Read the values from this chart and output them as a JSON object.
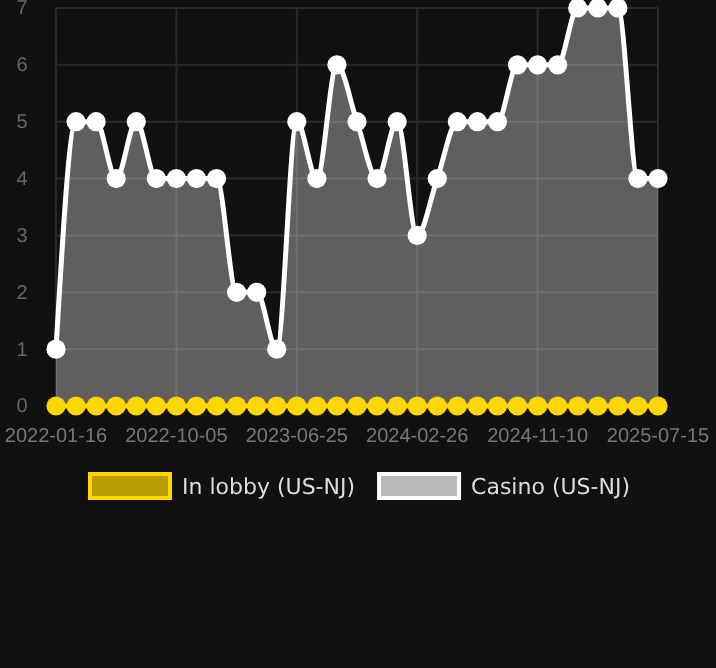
{
  "chart_data": {
    "type": "area",
    "categories": [
      "2022-01-16",
      null,
      null,
      null,
      null,
      null,
      "2022-10-05",
      null,
      null,
      null,
      null,
      null,
      "2023-06-25",
      null,
      null,
      null,
      null,
      null,
      "2024-02-26",
      null,
      null,
      null,
      null,
      null,
      "2024-11-10",
      null,
      null,
      null,
      null,
      null,
      "2025-07-15"
    ],
    "series": [
      {
        "name": "In lobby (US-NJ)",
        "type": "line",
        "color": "#ffd700",
        "values": [
          0,
          0,
          0,
          0,
          0,
          0,
          0,
          0,
          0,
          0,
          0,
          0,
          0,
          0,
          0,
          0,
          0,
          0,
          0,
          0,
          0,
          0,
          0,
          0,
          0,
          0,
          0,
          0,
          0,
          0,
          0
        ]
      },
      {
        "name": "Casino (US-NJ)",
        "color": "#ffffff",
        "values": [
          1,
          5,
          5,
          4,
          5,
          4,
          4,
          4,
          4,
          2,
          2,
          1,
          5,
          4,
          6,
          5,
          4,
          5,
          3,
          4,
          5,
          5,
          5,
          6,
          6,
          6,
          7,
          7,
          7,
          4,
          4
        ]
      }
    ],
    "ylim": [
      0,
      7
    ],
    "yticks": [
      0,
      1,
      2,
      3,
      4,
      5,
      6,
      7
    ],
    "grid": true,
    "legend": "bottom",
    "marker": "circle"
  }
}
